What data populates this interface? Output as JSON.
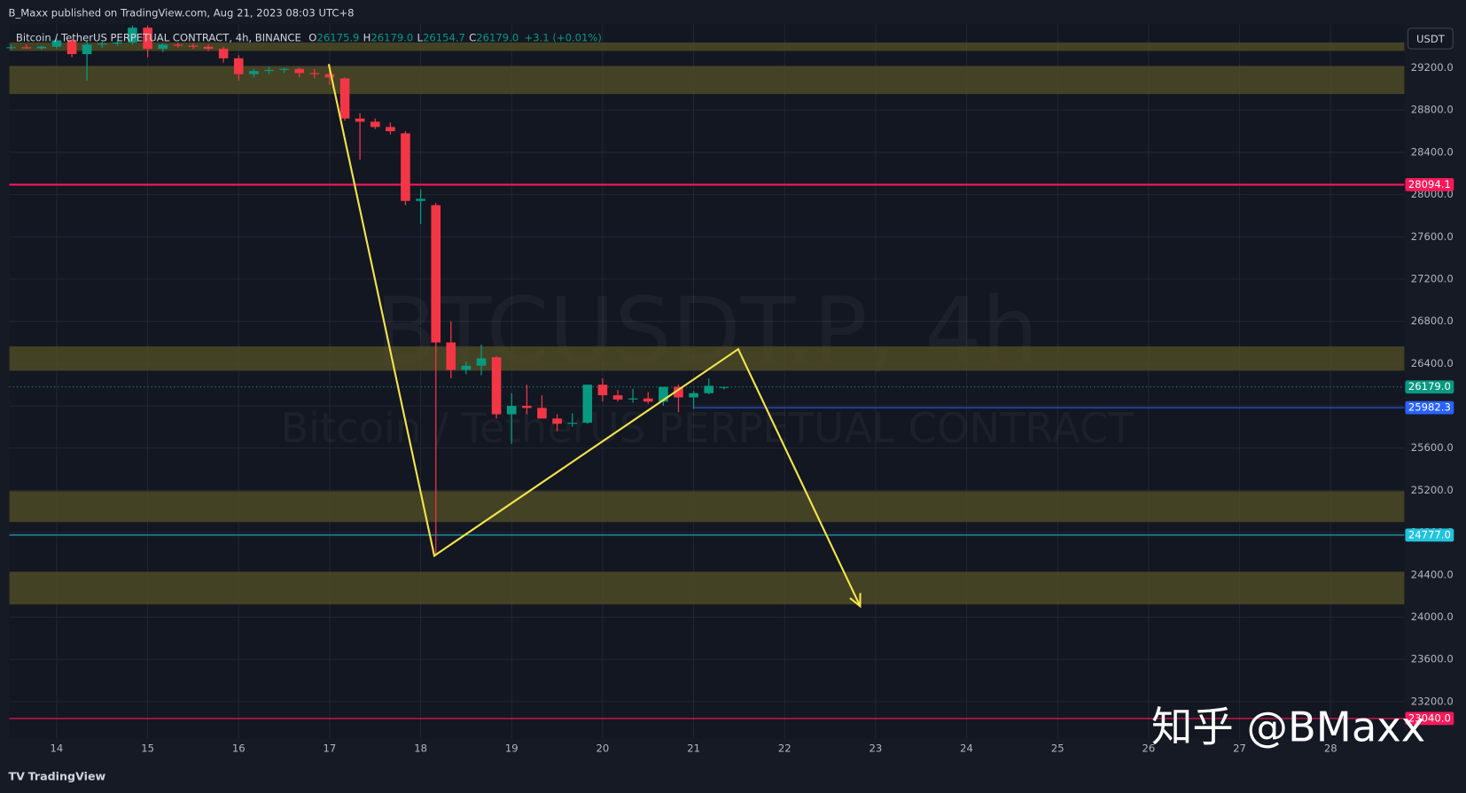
{
  "chart_data": {
    "type": "candlestick",
    "header": "B_Maxx published on TradingView.com, Aug 21, 2023 08:03 UTC+8",
    "legend_title": "Bitcoin / TetherUS PERPETUAL CONTRACT, 4h, BINANCE",
    "legend_ohlc": [
      {
        "key": "O",
        "text": "26175.9"
      },
      {
        "key": "H",
        "text": "26179.0"
      },
      {
        "key": "L",
        "text": "26154.7"
      },
      {
        "key": "C",
        "text": "26179.0"
      }
    ],
    "legend_change": "+3.1 (+0.01%)",
    "watermark_symbol": "BTCUSDT.P, 4h",
    "watermark_name": "Bitcoin / TetherUS PERPETUAL CONTRACT",
    "currency": "USDT",
    "footer": "TradingView",
    "credit": "知乎 @BMaxx",
    "up_color": "#089981",
    "down_color": "#f23645",
    "xlim": [
      13.48,
      28.81
    ],
    "xticks": [
      14,
      15,
      16,
      17,
      18,
      19,
      20,
      21,
      22,
      23,
      24,
      25,
      26,
      27,
      28
    ],
    "ylim": [
      22850,
      29610
    ],
    "yticks": [
      {
        "value": 23200,
        "label": "23200.0"
      },
      {
        "value": 23600,
        "label": "23600.0"
      },
      {
        "value": 24000,
        "label": "24000.0"
      },
      {
        "value": 24400,
        "label": "24400.0"
      },
      {
        "value": 24800,
        "label": "24800.0"
      },
      {
        "value": 25200,
        "label": "25200.0"
      },
      {
        "value": 25600,
        "label": "25600.0"
      },
      {
        "value": 26000,
        "label": "26000.0"
      },
      {
        "value": 26400,
        "label": "26400.0"
      },
      {
        "value": 26800,
        "label": "26800.0"
      },
      {
        "value": 27200,
        "label": "27200.0"
      },
      {
        "value": 27600,
        "label": "27600.0"
      },
      {
        "value": 28000,
        "label": "28000.0"
      },
      {
        "value": 28400,
        "label": "28400.0"
      },
      {
        "value": 28800,
        "label": "28800.0"
      },
      {
        "value": 29200,
        "label": "29200.0"
      }
    ],
    "grid": true,
    "x": [
      13.5,
      13.667,
      13.833,
      14.0,
      14.167,
      14.333,
      14.5,
      14.667,
      14.833,
      15.0,
      15.167,
      15.333,
      15.5,
      15.667,
      15.833,
      16.0,
      16.167,
      16.333,
      16.5,
      16.667,
      16.833,
      17.0,
      17.167,
      17.333,
      17.5,
      17.667,
      17.833,
      18.0,
      18.167,
      18.333,
      18.5,
      18.667,
      18.833,
      19.0,
      19.167,
      19.333,
      19.5,
      19.667,
      19.833,
      20.0,
      20.167,
      20.333,
      20.5,
      20.667,
      20.833,
      21.0,
      21.167,
      21.333
    ],
    "open": [
      29390,
      29395,
      29385,
      29400,
      29460,
      29330,
      29420,
      29430,
      29440,
      29580,
      29380,
      29420,
      29410,
      29400,
      29380,
      29290,
      29140,
      29170,
      29180,
      29190,
      29150,
      29140,
      29100,
      28720,
      28690,
      28640,
      28580,
      27940,
      27900,
      26600,
      26340,
      26380,
      26460,
      25920,
      26000,
      25980,
      25880,
      25830,
      25840,
      26200,
      26100,
      26060,
      26070,
      26040,
      26180,
      26080,
      26120,
      26175.9
    ],
    "high": [
      29420,
      29420,
      29410,
      29480,
      29470,
      29460,
      29450,
      29460,
      29600,
      29600,
      29430,
      29440,
      29430,
      29420,
      29400,
      29320,
      29190,
      29210,
      29200,
      29200,
      29190,
      29230,
      29110,
      28770,
      28720,
      28680,
      28600,
      28050,
      27920,
      26800,
      26420,
      26580,
      26470,
      26120,
      26200,
      26100,
      25920,
      25930,
      26200,
      26260,
      26150,
      26160,
      26130,
      26170,
      26200,
      26140,
      26260,
      26179.0
    ],
    "low": [
      29370,
      29380,
      29370,
      29380,
      29300,
      29080,
      29390,
      29410,
      29420,
      29300,
      29350,
      29390,
      29380,
      29360,
      29250,
      29080,
      29110,
      29140,
      29150,
      29110,
      29100,
      29040,
      28700,
      28330,
      28620,
      28570,
      27900,
      27720,
      24580,
      26260,
      26300,
      26290,
      25880,
      25640,
      25920,
      25880,
      25760,
      25800,
      25830,
      26040,
      26040,
      26030,
      26020,
      26000,
      25940,
      25970,
      26110,
      26154.7
    ],
    "close": [
      29395,
      29385,
      29400,
      29460,
      29330,
      29420,
      29430,
      29440,
      29580,
      29380,
      29420,
      29410,
      29400,
      29380,
      29290,
      29140,
      29170,
      29180,
      29190,
      29150,
      29140,
      29110,
      28720,
      28690,
      28640,
      28600,
      27940,
      27960,
      26600,
      26340,
      26380,
      26450,
      25920,
      26000,
      25980,
      25880,
      25830,
      25840,
      26200,
      26100,
      26060,
      26070,
      26040,
      26180,
      26080,
      26120,
      26190,
      26179.0
    ],
    "zones": [
      [
        29360,
        29440
      ],
      [
        28952,
        29218
      ],
      [
        26333,
        26563
      ],
      [
        24900,
        25192
      ],
      [
        24120,
        24430
      ]
    ],
    "zone_color": "#4d4a26",
    "levels": [
      {
        "value": 28094.1,
        "label": "28094.1",
        "color": "#f7195a",
        "from": 13.48
      },
      {
        "value": 25982.3,
        "label": "25982.3",
        "color": "#2962ff",
        "from": 21.0
      },
      {
        "value": 24777.0,
        "label": "24777.0",
        "color": "#22c4dc",
        "from": 13.48
      },
      {
        "value": 23040.0,
        "label": "23040.0",
        "color": "#f7195a",
        "from": 13.48
      }
    ],
    "last": 26179.0,
    "last_label": "26179.0",
    "drawing": {
      "x": [
        16.99,
        18.15,
        21.49,
        22.83
      ],
      "y": [
        29235,
        24581,
        26537,
        24103
      ],
      "color": "#f5e44a"
    }
  }
}
